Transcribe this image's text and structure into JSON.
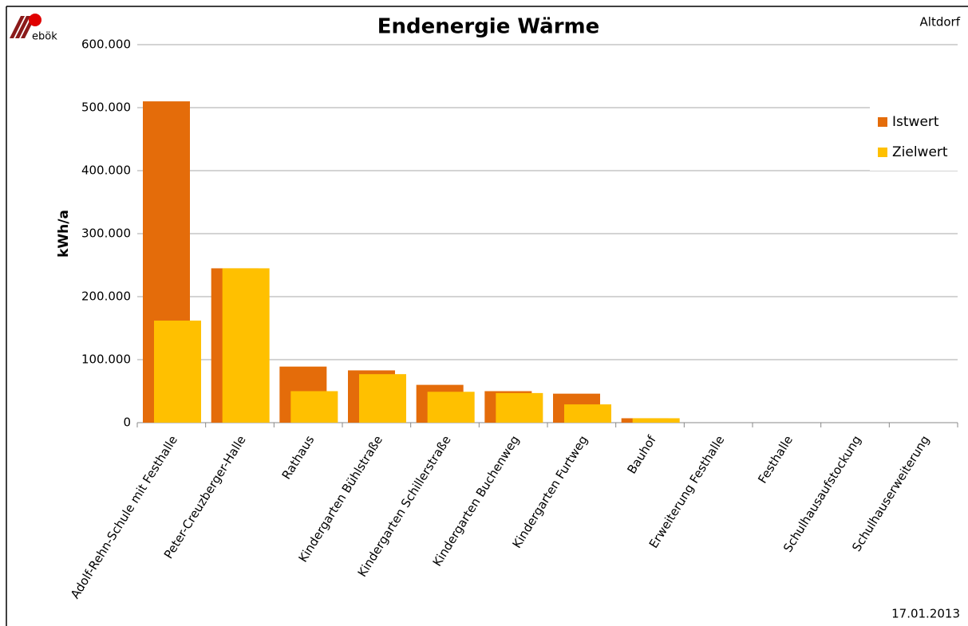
{
  "logo": "ebök",
  "location": "Altdorf",
  "date": "17.01.2013",
  "chart_data": {
    "type": "bar",
    "title": "Endenergie Wärme",
    "y_label": "kWh/a",
    "categories": [
      "Adolf-Rehn-Schule mit Festhalle",
      "Peter-Creuzberger-Halle",
      "Rathaus",
      "Kindergarten Bühlstraße",
      "Kindergarten Schillerstraße",
      "Kindergarten Buchenweg",
      "Kindergarten Furtweg",
      "Bauhof",
      "Erweiterung Festhalle",
      "Festhalle",
      "Schulhausaufstockung",
      "Schulhauserweiterung"
    ],
    "series": [
      {
        "name": "Istwert",
        "color": "#e46c0a",
        "values": [
          510000,
          245000,
          89000,
          83000,
          60000,
          50000,
          46000,
          7000,
          0,
          0,
          0,
          0
        ]
      },
      {
        "name": "Zielwert",
        "color": "#ffc000",
        "values": [
          162000,
          245000,
          50000,
          77000,
          49000,
          47000,
          29000,
          7000,
          0,
          0,
          0,
          0
        ]
      }
    ],
    "ylim": [
      0,
      600000
    ],
    "yticks": [
      0,
      {
        "value": 100000,
        "label": "100.000"
      },
      {
        "value": 200000,
        "label": "200.000"
      },
      {
        "value": 300000,
        "label": "300.000"
      },
      {
        "value": 400000,
        "label": "400.000"
      },
      {
        "value": 500000,
        "label": "500.000"
      },
      {
        "value": 600000,
        "label": "600.000"
      }
    ],
    "grid": true,
    "legend": "right"
  }
}
